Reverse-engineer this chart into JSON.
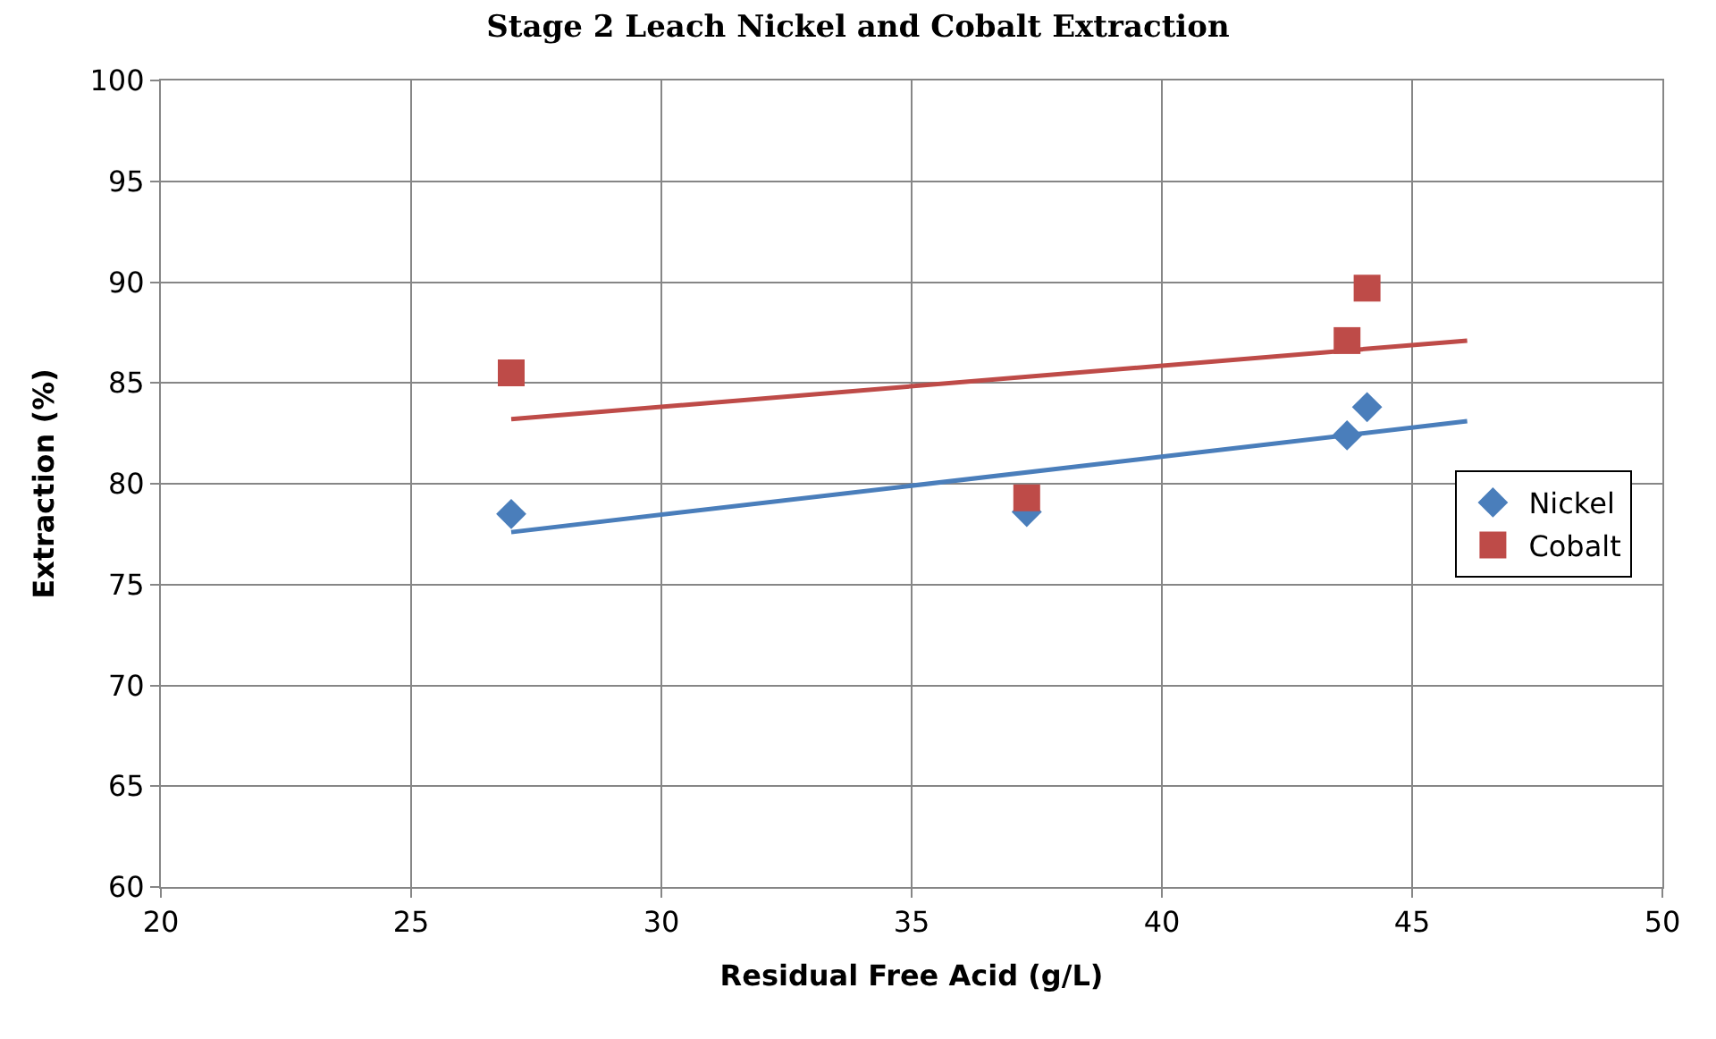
{
  "chart_data": {
    "type": "scatter",
    "title": "Stage 2 Leach Nickel and Cobalt Extraction",
    "xlabel": "Residual Free Acid (g/L)",
    "ylabel": "Extraction (%)",
    "xlim": [
      20,
      50
    ],
    "xticks": [
      20,
      25,
      30,
      35,
      40,
      45,
      50
    ],
    "ylim": [
      60,
      100
    ],
    "yticks": [
      60,
      65,
      70,
      75,
      80,
      85,
      90,
      95,
      100
    ],
    "grid": true,
    "legend": "right",
    "series": [
      {
        "name": "Nickel",
        "color": "#4a7ebb",
        "marker": "diamond",
        "x": [
          27.0,
          37.3,
          43.7,
          44.1
        ],
        "values": [
          78.5,
          78.6,
          82.4,
          83.8
        ]
      },
      {
        "name": "Cobalt",
        "color": "#be4b48",
        "marker": "square",
        "x": [
          27.0,
          37.3,
          43.7,
          44.1
        ],
        "values": [
          85.5,
          79.3,
          87.1,
          89.7
        ]
      },
      {
        "type": "line",
        "color": "#4a7ebb",
        "x": [
          27.0,
          46.1
        ],
        "values": [
          77.6,
          83.1
        ]
      },
      {
        "type": "line",
        "color": "#be4b48",
        "x": [
          27.0,
          46.1
        ],
        "values": [
          83.2,
          87.1
        ]
      }
    ]
  }
}
